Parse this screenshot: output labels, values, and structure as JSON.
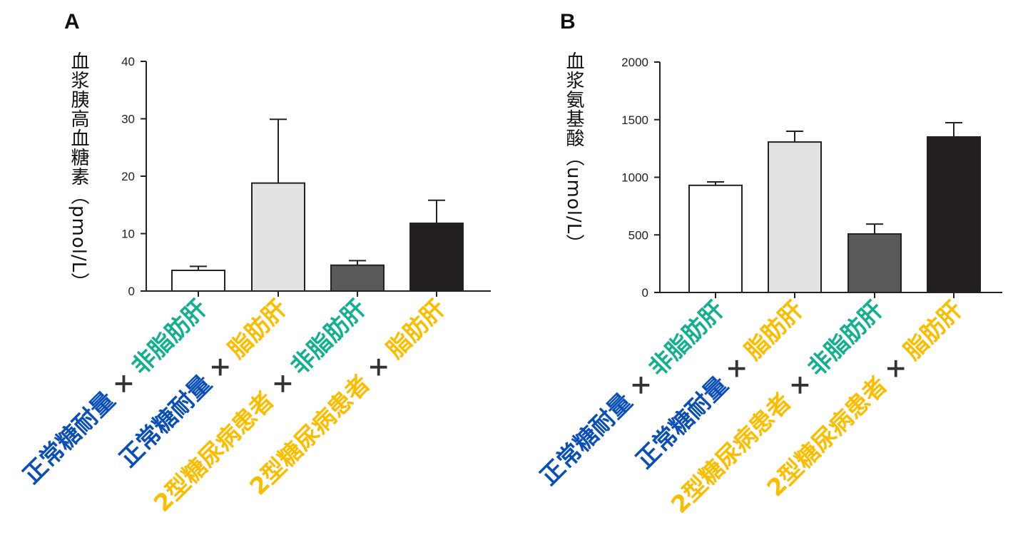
{
  "colors": {
    "blue": "#0a4fb8",
    "green": "#13b08f",
    "yellow": "#fbbd00",
    "separator": "#333333"
  },
  "chart_data": [
    {
      "type": "bar",
      "panel": "A",
      "ylabel": "血浆胰高血糖素（pmol/L）",
      "ylim": [
        0,
        40
      ],
      "yticks": [
        0,
        10,
        20,
        30,
        40
      ],
      "categories": [
        [
          {
            "t": "正常糖耐量",
            "c": "blue"
          },
          {
            "t": " × ",
            "c": "separator"
          },
          {
            "t": "非脂肪肝",
            "c": "green"
          }
        ],
        [
          {
            "t": "正常糖耐量",
            "c": "blue"
          },
          {
            "t": " × ",
            "c": "separator"
          },
          {
            "t": "脂肪肝",
            "c": "yellow"
          }
        ],
        [
          {
            "t": "2型糖尿病患者",
            "c": "yellow"
          },
          {
            "t": " × ",
            "c": "separator"
          },
          {
            "t": "非脂肪肝",
            "c": "green"
          }
        ],
        [
          {
            "t": "2型糖尿病患者",
            "c": "yellow"
          },
          {
            "t": " × ",
            "c": "separator"
          },
          {
            "t": "脂肪肝",
            "c": "yellow"
          }
        ]
      ],
      "values": [
        3.6,
        18.8,
        4.5,
        11.8
      ],
      "error_upper": [
        4.3,
        29.9,
        5.3,
        15.8
      ],
      "bar_colors": [
        "#ffffff",
        "#e1e2e4",
        "#58595b",
        "#231f20"
      ]
    },
    {
      "type": "bar",
      "panel": "B",
      "ylabel": "血浆氨基酸（umol/L）",
      "ylim": [
        0,
        2000
      ],
      "yticks": [
        0,
        500,
        1000,
        1500,
        2000
      ],
      "categories": [
        [
          {
            "t": "正常糖耐量",
            "c": "blue"
          },
          {
            "t": " × ",
            "c": "separator"
          },
          {
            "t": "非脂肪肝",
            "c": "green"
          }
        ],
        [
          {
            "t": "正常糖耐量",
            "c": "blue"
          },
          {
            "t": " × ",
            "c": "separator"
          },
          {
            "t": "脂肪肝",
            "c": "yellow"
          }
        ],
        [
          {
            "t": "2型糖尿病患者",
            "c": "yellow"
          },
          {
            "t": " × ",
            "c": "separator"
          },
          {
            "t": "非脂肪肝",
            "c": "green"
          }
        ],
        [
          {
            "t": "2型糖尿病患者",
            "c": "yellow"
          },
          {
            "t": " × ",
            "c": "separator"
          },
          {
            "t": "脂肪肝",
            "c": "yellow"
          }
        ]
      ],
      "values": [
        930,
        1306,
        508,
        1350
      ],
      "error_upper": [
        960,
        1399,
        594,
        1474
      ],
      "bar_colors": [
        "#ffffff",
        "#e1e2e4",
        "#58595b",
        "#231f20"
      ]
    }
  ]
}
